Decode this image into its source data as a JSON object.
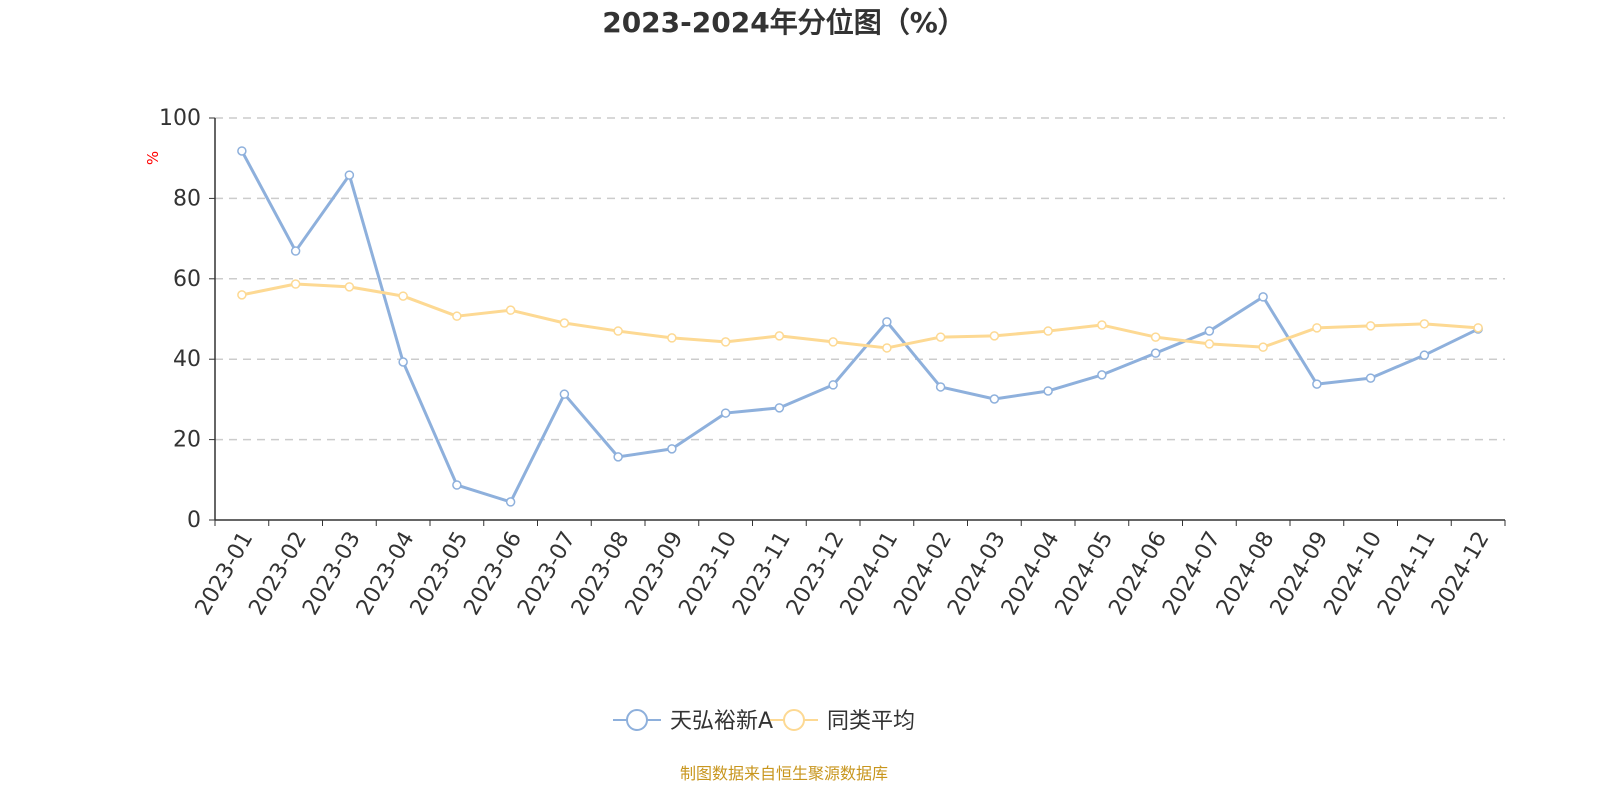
{
  "chart_data": {
    "type": "line",
    "title": "2023-2024年分位图（%）",
    "ylabel": "%",
    "xlabel": "",
    "ylim": [
      0,
      100
    ],
    "yticks": [
      0,
      20,
      40,
      60,
      80,
      100
    ],
    "grid": true,
    "legend_position": "bottom",
    "categories": [
      "2023-01",
      "2023-02",
      "2023-03",
      "2023-04",
      "2023-05",
      "2023-06",
      "2023-07",
      "2023-08",
      "2023-09",
      "2023-10",
      "2023-11",
      "2023-12",
      "2024-01",
      "2024-02",
      "2024-03",
      "2024-04",
      "2024-05",
      "2024-06",
      "2024-07",
      "2024-08",
      "2024-09",
      "2024-10",
      "2024-11",
      "2024-12"
    ],
    "series": [
      {
        "name": "天弘裕新A",
        "color": "#8eb0dc",
        "values": [
          91.8,
          66.9,
          85.8,
          39.3,
          8.7,
          4.5,
          31.3,
          15.7,
          17.7,
          26.6,
          27.9,
          33.6,
          49.3,
          33.1,
          30.1,
          32.1,
          36.1,
          41.5,
          47.0,
          55.5,
          33.8,
          35.3,
          41.0,
          47.5
        ]
      },
      {
        "name": "同类平均",
        "color": "#fdd993",
        "values": [
          56.0,
          58.7,
          58.0,
          55.7,
          50.7,
          52.2,
          49.0,
          47.0,
          45.3,
          44.3,
          45.8,
          44.3,
          42.8,
          45.5,
          45.8,
          47.0,
          48.5,
          45.5,
          43.8,
          43.0,
          47.8,
          48.3,
          48.8,
          47.8
        ]
      }
    ]
  },
  "source": "制图数据来自恒生聚源数据库",
  "colors": {
    "title": "#333333",
    "axis": "#333333",
    "grid": "#cccccc",
    "ylabel": "#ff0000",
    "source": "#c8961e"
  }
}
